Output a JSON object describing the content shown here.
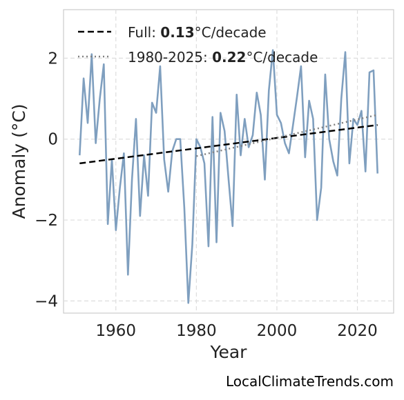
{
  "chart_data": {
    "type": "line",
    "xlabel": "Year",
    "ylabel": "Anomaly (°C)",
    "xlim": [
      1947,
      2029
    ],
    "ylim": [
      -4.3,
      3.2
    ],
    "x_ticks": [
      1960,
      1980,
      2000,
      2020
    ],
    "y_ticks": [
      -4,
      -2,
      0,
      2
    ],
    "y_tick_labels": [
      "−4",
      "−2",
      "0",
      "2"
    ],
    "grid": true,
    "legend_position": "top-left",
    "series": [
      {
        "kind": "anomaly",
        "color": "#7f9fbf",
        "x": [
          1951,
          1952,
          1953,
          1954,
          1955,
          1956,
          1957,
          1958,
          1959,
          1960,
          1961,
          1962,
          1963,
          1964,
          1965,
          1966,
          1967,
          1968,
          1969,
          1970,
          1971,
          1972,
          1973,
          1974,
          1975,
          1976,
          1977,
          1978,
          1979,
          1980,
          1981,
          1982,
          1983,
          1984,
          1985,
          1986,
          1987,
          1988,
          1989,
          1990,
          1991,
          1992,
          1993,
          1994,
          1995,
          1996,
          1997,
          1998,
          1999,
          2000,
          2001,
          2002,
          2003,
          2004,
          2005,
          2006,
          2007,
          2008,
          2009,
          2010,
          2011,
          2012,
          2013,
          2014,
          2015,
          2016,
          2017,
          2018,
          2019,
          2020,
          2021,
          2022,
          2023,
          2024,
          2025
        ],
        "y": [
          -0.4,
          1.5,
          0.4,
          2.1,
          -0.1,
          1.0,
          1.85,
          -2.1,
          -0.5,
          -2.25,
          -1.2,
          -0.35,
          -3.35,
          -1.0,
          0.5,
          -1.9,
          -0.4,
          -1.4,
          0.9,
          0.65,
          1.8,
          -0.5,
          -1.3,
          -0.3,
          0.0,
          0.0,
          -1.7,
          -4.05,
          -2.6,
          0.0,
          -0.2,
          -0.6,
          -2.65,
          0.55,
          -2.55,
          0.65,
          0.2,
          -1.0,
          -2.15,
          1.1,
          -0.4,
          0.5,
          -0.2,
          0.1,
          1.15,
          0.6,
          -1.0,
          1.2,
          2.2,
          0.6,
          0.4,
          -0.1,
          -0.35,
          0.35,
          1.05,
          1.8,
          -0.45,
          0.95,
          0.5,
          -2.0,
          -1.2,
          1.6,
          0.0,
          -0.55,
          -0.9,
          1.0,
          2.15,
          -0.6,
          0.5,
          0.35,
          0.7,
          -0.8,
          1.65,
          1.7,
          -0.85
        ]
      },
      {
        "kind": "trend-full",
        "color": "#000000",
        "x": [
          1951,
          2025
        ],
        "y": [
          -0.6,
          0.35
        ]
      },
      {
        "kind": "trend-recent",
        "color": "#808080",
        "x": [
          1980,
          2025
        ],
        "y": [
          -0.42,
          0.6
        ]
      }
    ]
  },
  "legend": {
    "full_prefix": "Full: ",
    "full_value": "0.13",
    "full_suffix": "°C/decade",
    "recent_prefix": "1980-2025: ",
    "recent_value": "0.22",
    "recent_suffix": "°C/decade"
  },
  "watermark": "LocalClimateTrends.com"
}
